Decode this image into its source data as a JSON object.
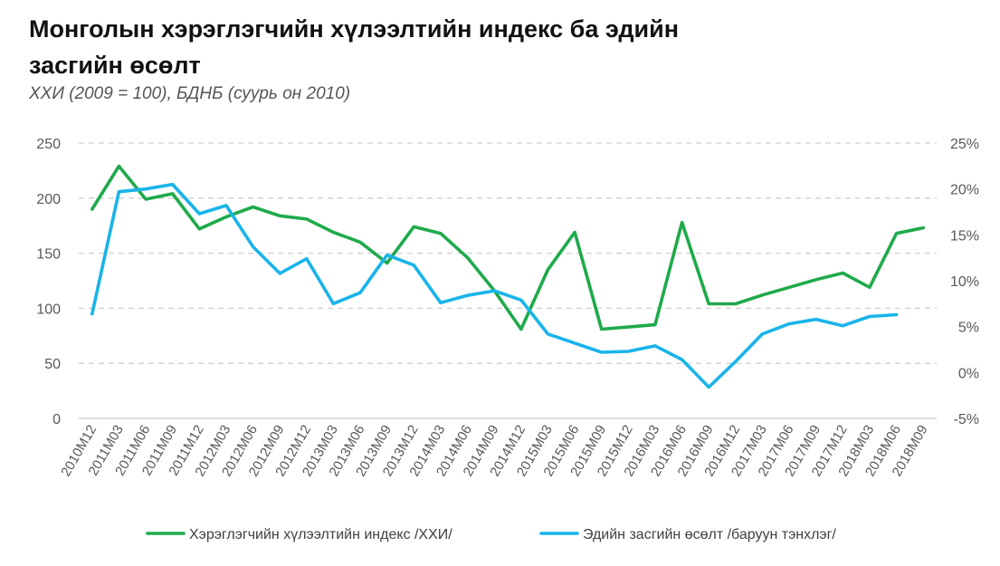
{
  "title_line1": "Монголын хэрэглэгчийн хүлээлтийн индекс ба эдийн",
  "title_line2": "засгийн өсөлт",
  "subtitle": "ХХИ (2009 = 100), БДНБ (суурь он 2010)",
  "chart_data": {
    "type": "line",
    "categories": [
      "2010M12",
      "2011M03",
      "2011M06",
      "2011M09",
      "2011M12",
      "2012M03",
      "2012M06",
      "2012M09",
      "2012M12",
      "2013M03",
      "2013M06",
      "2013M09",
      "2013M12",
      "2014M03",
      "2014M06",
      "2014M09",
      "2014M12",
      "2015M03",
      "2015M06",
      "2015M09",
      "2015M12",
      "2016M03",
      "2016M06",
      "2016M09",
      "2016M12",
      "2017M03",
      "2017M06",
      "2017M09",
      "2017M12",
      "2018M03",
      "2018M06",
      "2018M09"
    ],
    "y_left": {
      "ticks": [
        "0",
        "50",
        "100",
        "150",
        "200",
        "250"
      ],
      "min": 0,
      "max": 250
    },
    "y_right": {
      "ticks": [
        "-5%",
        "0%",
        "5%",
        "10%",
        "15%",
        "20%",
        "25%"
      ],
      "min": -5,
      "max": 25
    },
    "grid": true,
    "legend_position": "bottom",
    "series": [
      {
        "name": "Хэрэглэгчийн хүлээлтийн индекс /ХХИ/",
        "axis": "left",
        "color": "#1faa4b",
        "values": [
          190,
          229,
          199,
          204,
          172,
          183,
          192,
          184,
          181,
          169,
          160,
          141,
          174,
          168,
          146,
          116,
          81,
          135,
          169,
          81,
          83,
          85,
          178,
          104,
          104,
          112,
          119,
          126,
          132,
          119,
          168,
          173
        ]
      },
      {
        "name": "Эдийн засгийн өсөлт /баруун тэнхлэг/",
        "axis": "right",
        "color": "#19b4ea",
        "values": [
          6.4,
          19.7,
          20.0,
          20.5,
          17.3,
          18.2,
          13.7,
          10.8,
          12.4,
          7.5,
          8.7,
          12.8,
          11.7,
          7.6,
          8.4,
          8.9,
          7.9,
          4.2,
          3.2,
          2.2,
          2.3,
          2.9,
          1.4,
          -1.6,
          1.2,
          4.2,
          5.3,
          5.8,
          5.1,
          6.1,
          6.3,
          null
        ]
      }
    ]
  }
}
